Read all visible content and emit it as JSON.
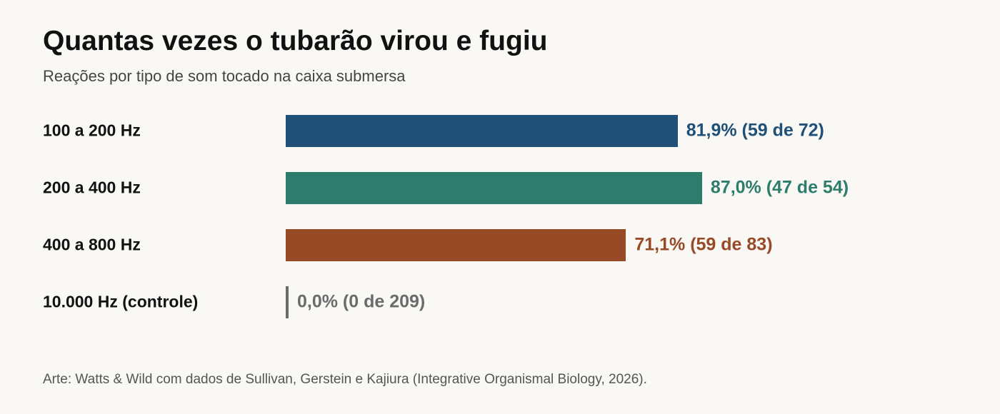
{
  "chart_data": {
    "type": "bar",
    "orientation": "horizontal",
    "title": "Quantas vezes o tubarão virou e fugiu",
    "subtitle": "Reações por tipo de som tocado na caixa submersa",
    "xlim": [
      0,
      100
    ],
    "grid": false,
    "legend": "none",
    "categories": [
      "100 a 200 Hz",
      "200 a 400 Hz",
      "400 a 800 Hz",
      "10.000 Hz (controle)"
    ],
    "values": [
      81.9,
      87.0,
      71.1,
      0.0
    ],
    "value_labels": [
      "81,9% (59 de 72)",
      "87,0% (47 de 54)",
      "71,1% (59 de 83)",
      "0,0% (0 de 209)"
    ],
    "colors": [
      "#1f5078",
      "#2e7d6c",
      "#984a26",
      "#6b6b6b"
    ]
  },
  "source": "Arte: Watts & Wild com dados de Sullivan, Gerstein e Kajiura (Integrative Organismal Biology, 2026)."
}
